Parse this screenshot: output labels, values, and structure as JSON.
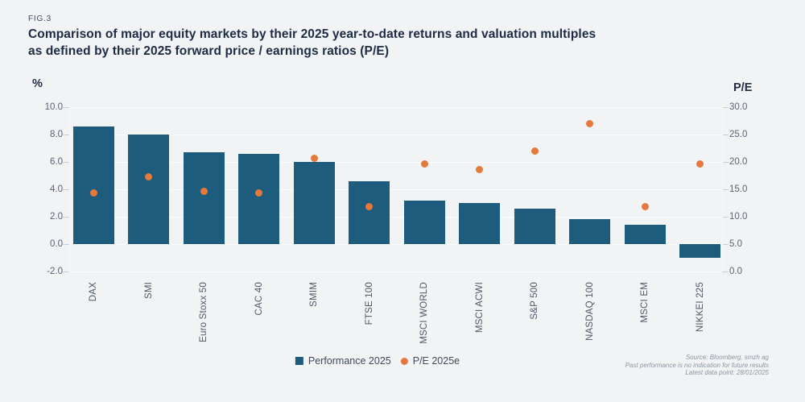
{
  "figure": {
    "tag": "FIG.3",
    "title_line1": "Comparison of major equity markets by their 2025 year-to-date returns and valuation multiples",
    "title_line2": "as defined by their 2025 forward price / earnings ratios (P/E)"
  },
  "chart_data": {
    "type": "bar",
    "subtype": "bar-with-scatter-overlay-dual-axis",
    "categories": [
      "DAX",
      "SMI",
      "Euro Stoxx 50",
      "CAC 40",
      "SMIM",
      "FTSE 100",
      "MSCI WORLD",
      "MSCI ACWI",
      "S&P 500",
      "NASDAQ 100",
      "MSCI EM",
      "NIKKEI 225"
    ],
    "series": [
      {
        "name": "Performance 2025",
        "type": "bar",
        "axis": "left",
        "color": "#1e5c7e",
        "values": [
          8.6,
          8.0,
          6.7,
          6.6,
          6.0,
          4.6,
          3.2,
          3.0,
          2.6,
          1.8,
          1.4,
          -1.0
        ]
      },
      {
        "name": "P/E 2025e",
        "type": "scatter",
        "axis": "right",
        "color": "#e5793b",
        "values": [
          14.4,
          17.3,
          14.6,
          14.4,
          20.7,
          11.9,
          19.7,
          18.6,
          22.0,
          27.0,
          11.9,
          19.6
        ]
      }
    ],
    "left_axis": {
      "label": "%",
      "ticks": [
        "10.0",
        "8.0",
        "6.0",
        "4.0",
        "2.0",
        "0.0",
        "-2.0"
      ],
      "min": -2,
      "max": 10
    },
    "right_axis": {
      "label": "P/E",
      "ticks": [
        "30.0",
        "25.0",
        "20.0",
        "15.0",
        "10.0",
        "5.0",
        "0.0"
      ],
      "min": 0,
      "max": 30
    },
    "grid": true,
    "legend_position": "bottom"
  },
  "footer": {
    "lines": [
      "Source: Bloomberg, smzh ag",
      "Past performance is no indication for future results",
      "Latest data point: 28/01/2025"
    ]
  }
}
